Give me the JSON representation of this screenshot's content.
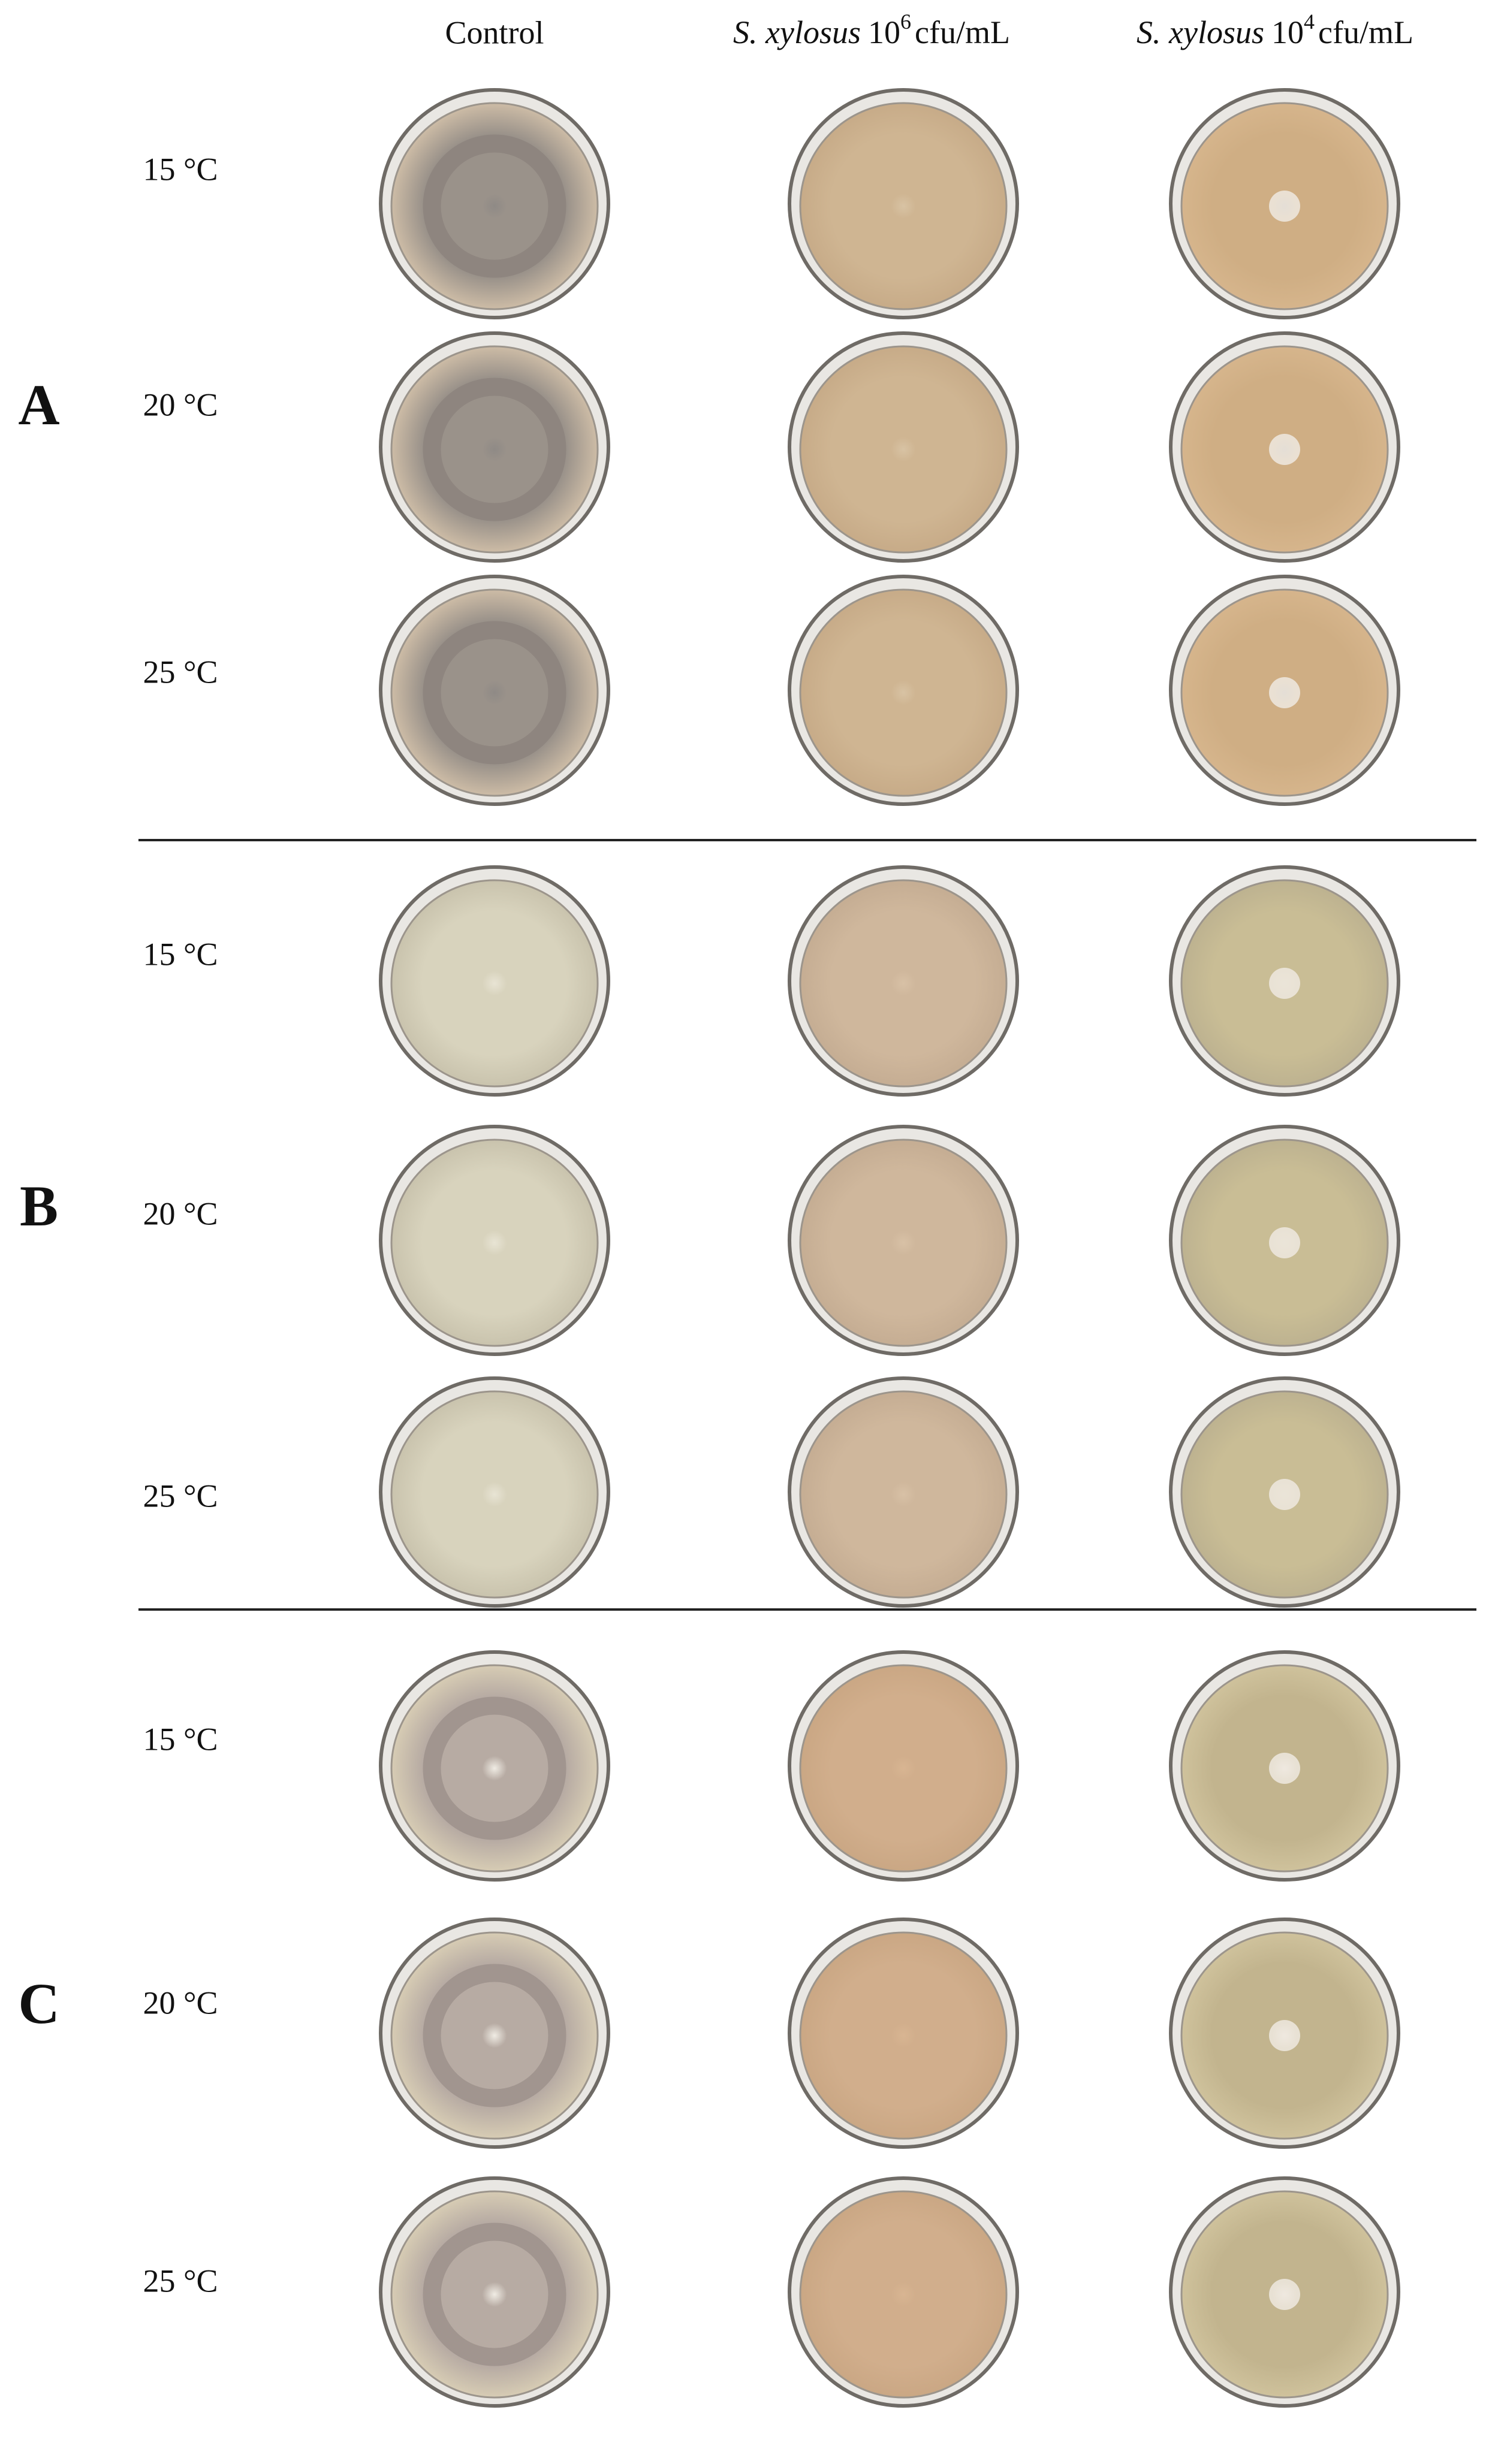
{
  "columns": [
    {
      "label": "Control"
    },
    {
      "species": "S. xylosus",
      "base": "10",
      "exponent": "6",
      "unit": "cfu/mL"
    },
    {
      "species": "S. xylosus",
      "base": "10",
      "exponent": "4",
      "unit": "cfu/mL"
    }
  ],
  "panels": [
    {
      "label": "A",
      "rows": [
        "15 °C",
        "20 °C",
        "25 °C"
      ]
    },
    {
      "label": "B",
      "rows": [
        "15 °C",
        "20 °C",
        "25 °C"
      ]
    },
    {
      "label": "C",
      "rows": [
        "15 °C",
        "20 °C",
        "25 °C"
      ]
    }
  ]
}
